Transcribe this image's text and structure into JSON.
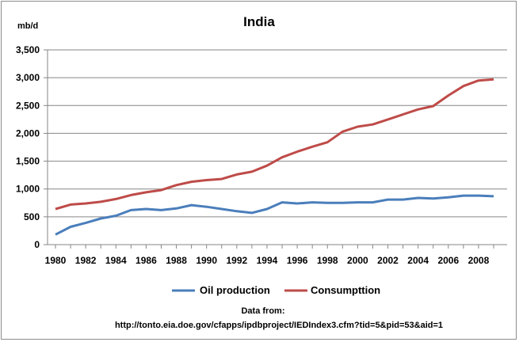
{
  "chart_data": {
    "type": "line",
    "title": "India",
    "ylabel": "mb/d",
    "xlabel": "",
    "ylim": [
      0,
      3500
    ],
    "yticks": [
      0,
      500,
      1000,
      1500,
      2000,
      2500,
      3000,
      3500
    ],
    "ytick_labels": [
      "0",
      "500",
      "1,000",
      "1,500",
      "2,000",
      "2,500",
      "3,000",
      "3,500"
    ],
    "x": [
      1980,
      1981,
      1982,
      1983,
      1984,
      1985,
      1986,
      1987,
      1988,
      1989,
      1990,
      1991,
      1992,
      1993,
      1994,
      1995,
      1996,
      1997,
      1998,
      1999,
      2000,
      2001,
      2002,
      2003,
      2004,
      2005,
      2006,
      2007,
      2008,
      2009
    ],
    "xtick_labels": [
      "1980",
      "1982",
      "1984",
      "1986",
      "1988",
      "1990",
      "1992",
      "1994",
      "1996",
      "1998",
      "2000",
      "2002",
      "2004",
      "2006",
      "2008"
    ],
    "grid": "horizontal",
    "legend_position": "bottom",
    "series": [
      {
        "name": "Oil production",
        "color": "#4a7ebb",
        "values": [
          180,
          320,
          390,
          470,
          520,
          620,
          640,
          620,
          650,
          710,
          680,
          640,
          600,
          570,
          640,
          760,
          740,
          760,
          750,
          750,
          760,
          760,
          810,
          810,
          840,
          830,
          850,
          880,
          880,
          870
        ]
      },
      {
        "name": "Consumpttion",
        "color": "#be4b48",
        "values": [
          640,
          720,
          740,
          770,
          820,
          890,
          940,
          980,
          1070,
          1130,
          1160,
          1180,
          1260,
          1310,
          1420,
          1570,
          1670,
          1760,
          1840,
          2030,
          2120,
          2160,
          2250,
          2340,
          2430,
          2490,
          2680,
          2850,
          2950,
          2970
        ]
      }
    ],
    "source_label": "Data from:",
    "source_url": "http://tonto.eia.doe.gov/cfapps/ipdbproject/IEDIndex3.cfm?tid=5&pid=53&aid=1"
  }
}
